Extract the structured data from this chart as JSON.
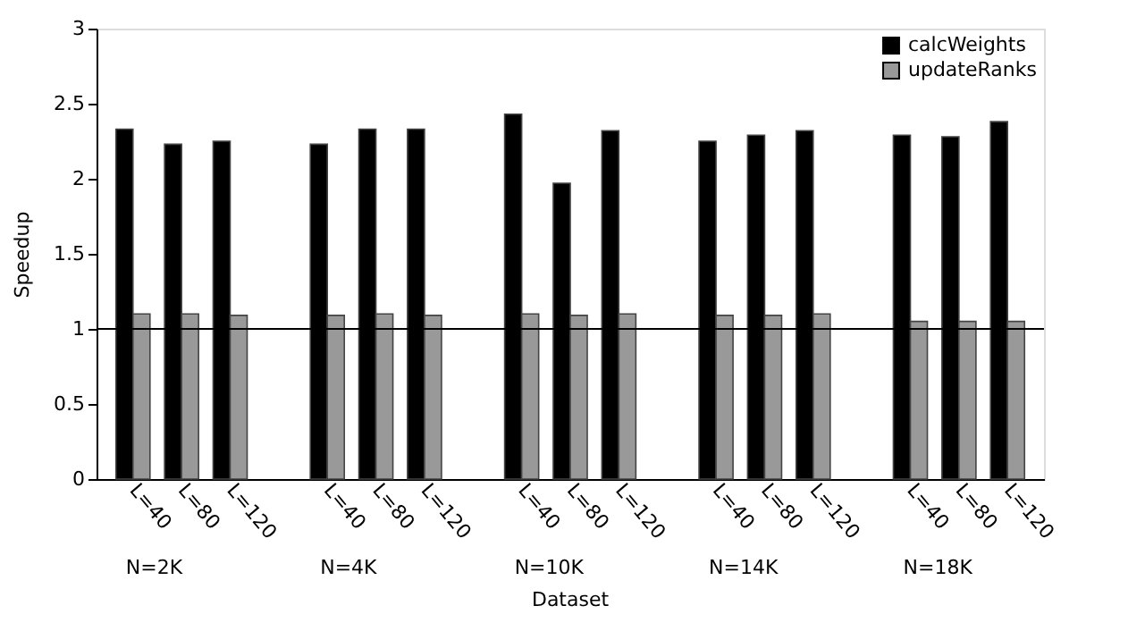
{
  "chart_data": {
    "type": "bar",
    "xlabel": "Dataset",
    "ylabel": "Speedup",
    "categories": [
      "L=40",
      "L=80",
      "L=120",
      "L=40",
      "L=80",
      "L=120",
      "L=40",
      "L=80",
      "L=120",
      "L=40",
      "L=80",
      "L=120",
      "L=40",
      "L=80",
      "L=120"
    ],
    "series": [
      {
        "name": "calcWeights",
        "color": "#000000",
        "values": [
          2.33,
          2.23,
          2.25,
          2.23,
          2.33,
          2.33,
          2.43,
          1.97,
          2.32,
          2.25,
          2.29,
          2.32,
          2.29,
          2.28,
          2.38
        ]
      },
      {
        "name": "updateRanks",
        "color": "#999999",
        "values": [
          1.1,
          1.1,
          1.09,
          1.09,
          1.1,
          1.09,
          1.1,
          1.09,
          1.1,
          1.09,
          1.09,
          1.1,
          1.05,
          1.05,
          1.05
        ]
      }
    ],
    "annotations": [
      "N=2K",
      "N=4K",
      "N=10K",
      "N=14K",
      "N=18K"
    ],
    "ref_lines": [
      {
        "axis": "y",
        "value": 1,
        "color": "#000000"
      }
    ],
    "ylim": [
      0,
      3
    ],
    "yticks": [
      0,
      0.5,
      1,
      1.5,
      2,
      2.5,
      3
    ],
    "grid": false,
    "legend": "top right"
  }
}
